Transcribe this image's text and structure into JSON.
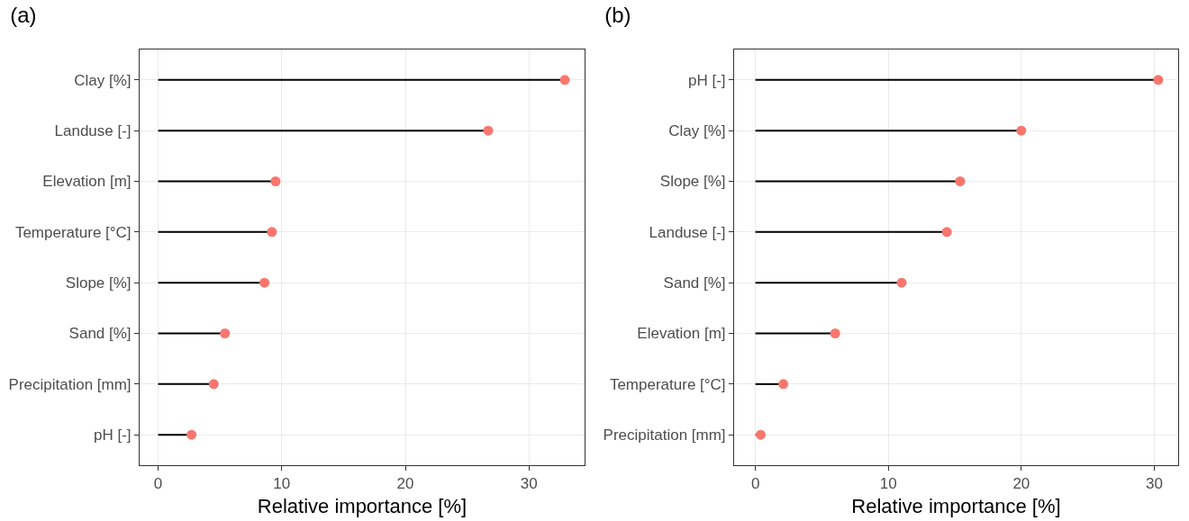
{
  "chart_data": [
    {
      "type": "lollipop",
      "title": "(a)",
      "xlabel": "Relative importance [%]",
      "orientation": "horizontal",
      "categories": [
        "Clay [%]",
        "Landuse [-]",
        "Elevation [m]",
        "Temperature [°C]",
        "Slope [%]",
        "Sand [%]",
        "Precipitation [mm]",
        "pH [-]"
      ],
      "values": [
        32.9,
        26.7,
        9.5,
        9.2,
        8.6,
        5.4,
        4.5,
        2.7
      ],
      "color": "#f8766d",
      "xlim": [
        -1.5,
        34.5
      ],
      "xticks": [
        0,
        10,
        20,
        30
      ],
      "grid": true,
      "marker": "circle"
    },
    {
      "type": "lollipop",
      "title": "(b)",
      "xlabel": "Relative importance [%]",
      "orientation": "horizontal",
      "categories": [
        "pH [-]",
        "Clay [%]",
        "Slope [%]",
        "Landuse [-]",
        "Sand [%]",
        "Elevation [m]",
        "Temperature [°C]",
        "Precipitation [mm]"
      ],
      "values": [
        30.3,
        20.0,
        15.4,
        14.4,
        11.0,
        6.0,
        2.1,
        0.4
      ],
      "color": "#f8766d",
      "xlim": [
        -1.6,
        31.8
      ],
      "xticks": [
        0,
        10,
        20,
        30
      ],
      "grid": true,
      "marker": "circle"
    }
  ]
}
